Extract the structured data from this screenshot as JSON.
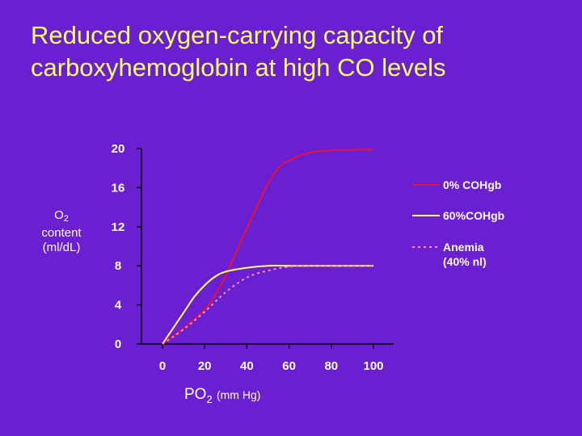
{
  "title_lines": [
    "Reduced oxygen-carrying capacity of",
    "carboxyhemoglobin at high CO levels"
  ],
  "y_label": {
    "main": "O",
    "sub": "2",
    "line2": "content",
    "line3": "(ml/dL)"
  },
  "x_label": {
    "main": "PO",
    "sub": "2",
    "unit": "(mm Hg)"
  },
  "colors": {
    "background": "#6a1fd0",
    "title": "#ffff66",
    "text": "#ffffff",
    "series_0": "#e8113a",
    "series_60": "#ffff66",
    "series_anemia": "#ff8faf"
  },
  "chart_data": {
    "type": "line",
    "xlim": [
      0,
      100
    ],
    "ylim": [
      0,
      20
    ],
    "x_ticks": [
      "0",
      "20",
      "40",
      "60",
      "80",
      "100"
    ],
    "y_ticks": [
      "0",
      "4",
      "8",
      "12",
      "16",
      "20"
    ],
    "grid": false,
    "legend_position": "right",
    "series": [
      {
        "name": "0% COHgb",
        "style": "solid",
        "color": "#e8113a",
        "points": [
          [
            0,
            0
          ],
          [
            10,
            1.6
          ],
          [
            20,
            3.5
          ],
          [
            25,
            5
          ],
          [
            30,
            7
          ],
          [
            35,
            9.4
          ],
          [
            40,
            11.8
          ],
          [
            45,
            14.2
          ],
          [
            50,
            16.4
          ],
          [
            55,
            18
          ],
          [
            60,
            18.8
          ],
          [
            70,
            19.6
          ],
          [
            80,
            19.8
          ],
          [
            100,
            19.9
          ]
        ]
      },
      {
        "name": "60%COHgb",
        "style": "solid",
        "color": "#ffff66",
        "points": [
          [
            0,
            0
          ],
          [
            10,
            3.2
          ],
          [
            15,
            4.8
          ],
          [
            20,
            6
          ],
          [
            25,
            6.9
          ],
          [
            30,
            7.4
          ],
          [
            40,
            7.8
          ],
          [
            50,
            8
          ],
          [
            60,
            8
          ],
          [
            100,
            8
          ]
        ]
      },
      {
        "name_lines": [
          "Anemia",
          "(40% nl)"
        ],
        "style": "dashed",
        "color": "#ff8faf",
        "points": [
          [
            0,
            0
          ],
          [
            10,
            1.5
          ],
          [
            20,
            3.3
          ],
          [
            30,
            5.3
          ],
          [
            40,
            6.8
          ],
          [
            50,
            7.5
          ],
          [
            60,
            7.9
          ],
          [
            70,
            8
          ],
          [
            100,
            8
          ]
        ]
      }
    ]
  }
}
